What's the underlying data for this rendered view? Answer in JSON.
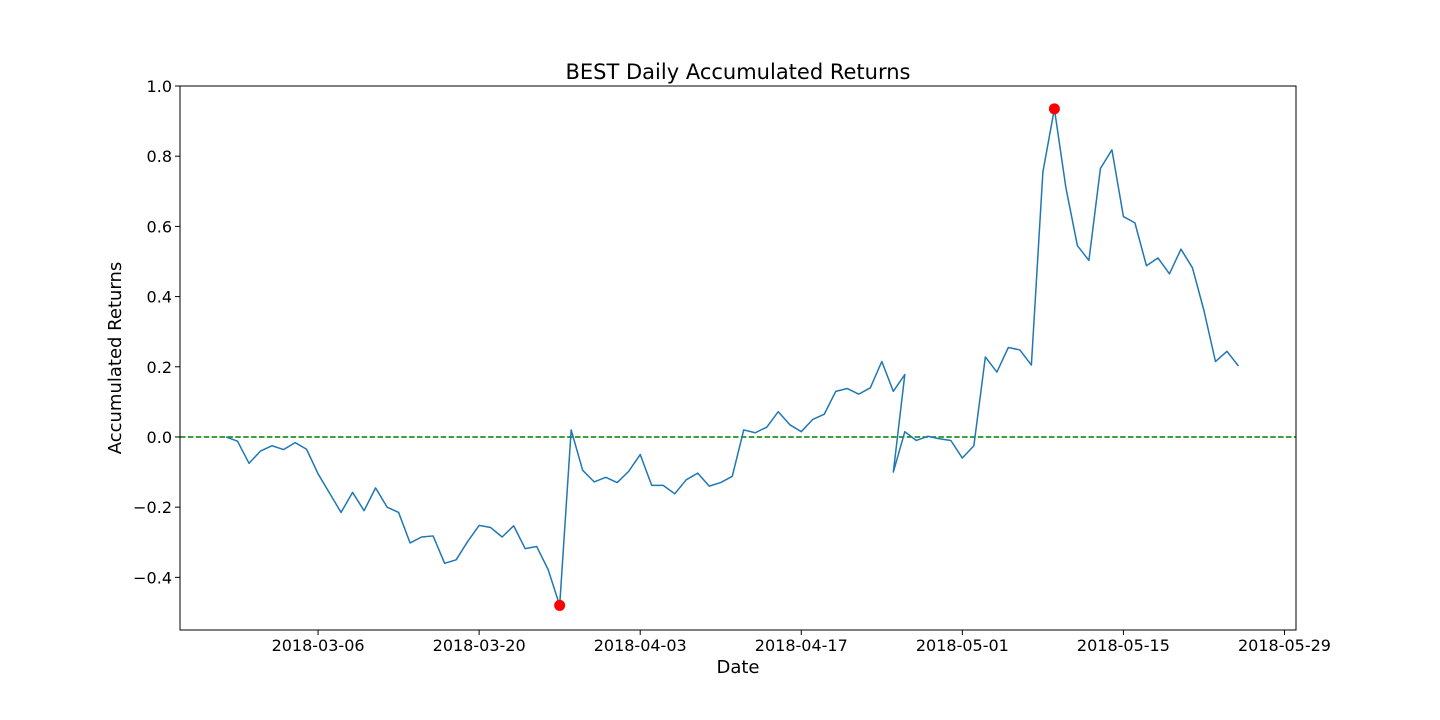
{
  "chart_data": {
    "type": "line",
    "title": "BEST Daily Accumulated Returns",
    "xlabel": "Date",
    "ylabel": "Accumulated Returns",
    "xlim": [
      "2018-02-22",
      "2018-05-30"
    ],
    "ylim": [
      -0.55,
      1.0
    ],
    "x_ticks": [
      "2018-03-06",
      "2018-03-20",
      "2018-04-03",
      "2018-04-17",
      "2018-05-01",
      "2018-05-15",
      "2018-05-29"
    ],
    "y_ticks": [
      {
        "value": 1.0,
        "label": "1.0"
      },
      {
        "value": 0.8,
        "label": "0.8"
      },
      {
        "value": 0.6,
        "label": "0.6"
      },
      {
        "value": 0.4,
        "label": "0.4"
      },
      {
        "value": 0.2,
        "label": "0.2"
      },
      {
        "value": 0.0,
        "label": "0.0"
      },
      {
        "value": -0.2,
        "label": "−0.2"
      },
      {
        "value": -0.4,
        "label": "−0.4"
      }
    ],
    "grid": false,
    "series": [
      {
        "color": "#1f77b4",
        "points": [
          [
            "2018-02-26",
            0.0
          ],
          [
            "2018-02-27",
            -0.012
          ],
          [
            "2018-02-28",
            -0.075
          ],
          [
            "2018-03-01",
            -0.04
          ],
          [
            "2018-03-02",
            -0.025
          ],
          [
            "2018-03-03",
            -0.036
          ],
          [
            "2018-03-04",
            -0.016
          ],
          [
            "2018-03-05",
            -0.035
          ],
          [
            "2018-03-06",
            -0.105
          ],
          [
            "2018-03-07",
            -0.16
          ],
          [
            "2018-03-08",
            -0.215
          ],
          [
            "2018-03-09",
            -0.158
          ],
          [
            "2018-03-10",
            -0.21
          ],
          [
            "2018-03-11",
            -0.145
          ],
          [
            "2018-03-12",
            -0.2
          ],
          [
            "2018-03-13",
            -0.215
          ],
          [
            "2018-03-14",
            -0.302
          ],
          [
            "2018-03-15",
            -0.285
          ],
          [
            "2018-03-16",
            -0.282
          ],
          [
            "2018-03-17",
            -0.36
          ],
          [
            "2018-03-18",
            -0.35
          ],
          [
            "2018-03-19",
            -0.298
          ],
          [
            "2018-03-20",
            -0.252
          ],
          [
            "2018-03-21",
            -0.258
          ],
          [
            "2018-03-22",
            -0.285
          ],
          [
            "2018-03-23",
            -0.253
          ],
          [
            "2018-03-24",
            -0.318
          ],
          [
            "2018-03-25",
            -0.312
          ],
          [
            "2018-03-26",
            -0.378
          ],
          [
            "2018-03-27",
            -0.48
          ],
          [
            "2018-03-28",
            0.02
          ],
          [
            "2018-03-29",
            -0.095
          ],
          [
            "2018-03-30",
            -0.128
          ],
          [
            "2018-03-31",
            -0.115
          ],
          [
            "2018-04-01",
            -0.13
          ],
          [
            "2018-04-02",
            -0.098
          ],
          [
            "2018-04-03",
            -0.05
          ],
          [
            "2018-04-04",
            -0.138
          ],
          [
            "2018-04-05",
            -0.138
          ],
          [
            "2018-04-06",
            -0.162
          ],
          [
            "2018-04-07",
            -0.122
          ],
          [
            "2018-04-08",
            -0.103
          ],
          [
            "2018-04-09",
            -0.14
          ],
          [
            "2018-04-10",
            -0.13
          ],
          [
            "2018-04-11",
            -0.112
          ],
          [
            "2018-04-12",
            0.02
          ],
          [
            "2018-04-13",
            0.012
          ],
          [
            "2018-04-14",
            0.028
          ],
          [
            "2018-04-15",
            0.072
          ],
          [
            "2018-04-16",
            0.035
          ],
          [
            "2018-04-17",
            0.015
          ],
          [
            "2018-04-18",
            0.05
          ],
          [
            "2018-04-19",
            0.065
          ],
          [
            "2018-04-20",
            0.13
          ],
          [
            "2018-04-21",
            0.138
          ],
          [
            "2018-04-22",
            0.122
          ],
          [
            "2018-04-23",
            0.14
          ],
          [
            "2018-04-24",
            0.215
          ],
          [
            "2018-04-25",
            0.13
          ],
          [
            "2018-04-26",
            0.178
          ],
          [
            "2018-04-25",
            -0.1
          ],
          [
            "2018-04-26",
            0.015
          ],
          [
            "2018-04-27",
            -0.01
          ],
          [
            "2018-04-28",
            0.002
          ],
          [
            "2018-04-29",
            -0.005
          ],
          [
            "2018-04-30",
            -0.01
          ],
          [
            "2018-05-01",
            -0.06
          ],
          [
            "2018-05-02",
            -0.025
          ],
          [
            "2018-05-03",
            0.228
          ],
          [
            "2018-05-04",
            0.185
          ],
          [
            "2018-05-05",
            0.255
          ],
          [
            "2018-05-06",
            0.248
          ],
          [
            "2018-05-07",
            0.205
          ],
          [
            "2018-05-08",
            0.755
          ],
          [
            "2018-05-09",
            0.935
          ],
          [
            "2018-05-10",
            0.71
          ],
          [
            "2018-05-11",
            0.545
          ],
          [
            "2018-05-12",
            0.503
          ],
          [
            "2018-05-13",
            0.765
          ],
          [
            "2018-05-14",
            0.818
          ],
          [
            "2018-05-15",
            0.628
          ],
          [
            "2018-05-16",
            0.61
          ],
          [
            "2018-05-17",
            0.488
          ],
          [
            "2018-05-18",
            0.51
          ],
          [
            "2018-05-19",
            0.465
          ],
          [
            "2018-05-20",
            0.535
          ],
          [
            "2018-05-21",
            0.482
          ],
          [
            "2018-05-22",
            0.36
          ],
          [
            "2018-05-23",
            0.215
          ],
          [
            "2018-05-24",
            0.244
          ],
          [
            "2018-05-25",
            0.202
          ]
        ]
      }
    ],
    "reference_line": {
      "y": 0.0,
      "color": "#008000",
      "style": "dashed"
    },
    "markers": [
      {
        "x": "2018-03-27",
        "y": -0.48,
        "color": "#ff0000"
      },
      {
        "x": "2018-05-09",
        "y": 0.935,
        "color": "#ff0000"
      }
    ]
  }
}
